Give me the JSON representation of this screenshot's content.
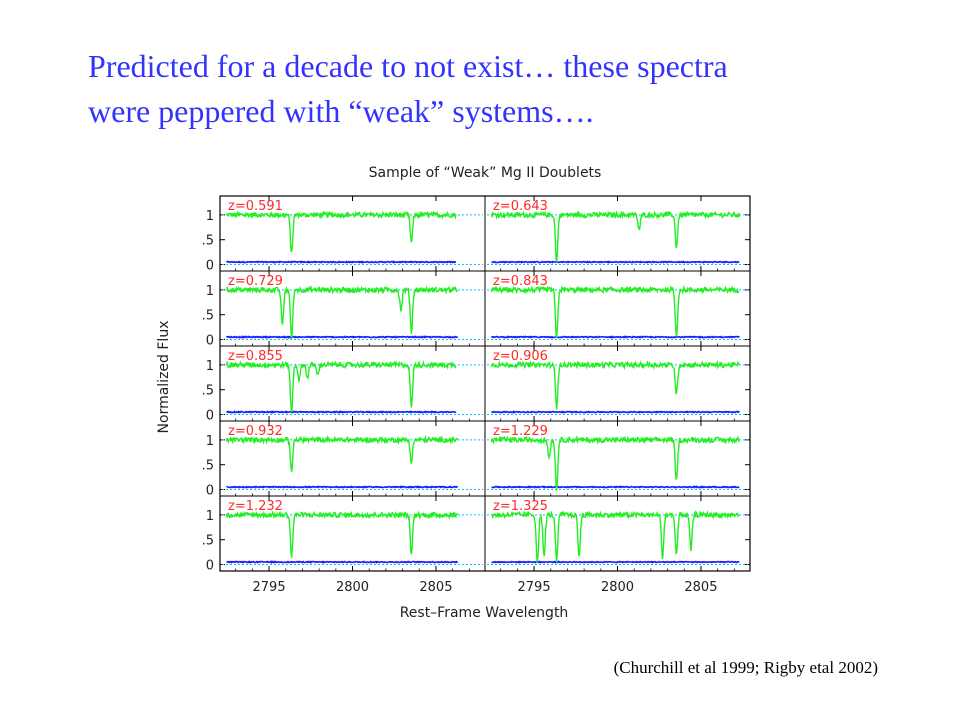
{
  "slide": {
    "title_line1": "Predicted for a decade to not exist… these spectra",
    "title_line2": "were peppered with “weak” systems….",
    "citation": "(Churchill et al 1999; Rigby etal 2002)"
  },
  "colors": {
    "title": "#3333ff",
    "spectrum": "#22ee22",
    "error": "#1a1aff",
    "reference_line": "#00c8ff",
    "panel_label": "#ff2a2a",
    "axis_text": "#222222"
  },
  "chart_data": {
    "type": "line",
    "title": "Sample of “Weak” Mg II Doublets",
    "xlabel": "Rest–Frame Wavelength",
    "ylabel": "Normalized Flux",
    "xlim": [
      2792.3,
      2807.7
    ],
    "ylim": [
      -0.05,
      1.3
    ],
    "xticks": [
      "2795",
      "2800",
      "2805"
    ],
    "yticks": [
      "0",
      ".5",
      "1"
    ],
    "grid": false,
    "layout": "5 rows x 2 columns of panels",
    "continuum_level": 1,
    "zero_level": 0,
    "panels": [
      {
        "label": "z=0.591",
        "absorption_lines": [
          {
            "x": 2796.35,
            "depth": 0.78
          },
          {
            "x": 2803.53,
            "depth": 0.55
          }
        ],
        "extra_lines": [],
        "error_level": 0.05,
        "data_end": 2806.2
      },
      {
        "label": "z=0.643",
        "absorption_lines": [
          {
            "x": 2796.35,
            "depth": 0.95
          },
          {
            "x": 2803.53,
            "depth": 0.65
          }
        ],
        "extra_lines": [
          {
            "x": 2801.3,
            "depth": 0.3
          }
        ],
        "error_level": 0.05,
        "data_end": 2807.3
      },
      {
        "label": "z=0.729",
        "absorption_lines": [
          {
            "x": 2796.35,
            "depth": 0.98
          },
          {
            "x": 2803.53,
            "depth": 0.85
          }
        ],
        "extra_lines": [
          {
            "x": 2795.8,
            "depth": 0.7
          },
          {
            "x": 2802.9,
            "depth": 0.4
          }
        ],
        "error_level": 0.05,
        "data_end": 2806.3
      },
      {
        "label": "z=0.843",
        "absorption_lines": [
          {
            "x": 2796.35,
            "depth": 1.0
          },
          {
            "x": 2803.53,
            "depth": 0.95
          }
        ],
        "extra_lines": [],
        "error_level": 0.05,
        "data_end": 2807.3
      },
      {
        "label": "z=0.855",
        "absorption_lines": [
          {
            "x": 2796.35,
            "depth": 0.98
          },
          {
            "x": 2803.53,
            "depth": 0.85
          }
        ],
        "extra_lines": [
          {
            "x": 2796.8,
            "depth": 0.3
          },
          {
            "x": 2797.3,
            "depth": 0.25
          },
          {
            "x": 2797.9,
            "depth": 0.2
          }
        ],
        "error_level": 0.05,
        "data_end": 2806.2
      },
      {
        "label": "z=0.906",
        "absorption_lines": [
          {
            "x": 2796.35,
            "depth": 0.85
          },
          {
            "x": 2803.53,
            "depth": 0.6
          }
        ],
        "extra_lines": [],
        "error_level": 0.05,
        "data_end": 2807.3
      },
      {
        "label": "z=0.932",
        "absorption_lines": [
          {
            "x": 2796.35,
            "depth": 0.62
          },
          {
            "x": 2803.53,
            "depth": 0.45
          }
        ],
        "extra_lines": [],
        "error_level": 0.05,
        "data_end": 2806.3
      },
      {
        "label": "z=1.229",
        "absorption_lines": [
          {
            "x": 2796.35,
            "depth": 1.0
          },
          {
            "x": 2803.53,
            "depth": 0.85
          }
        ],
        "extra_lines": [
          {
            "x": 2795.9,
            "depth": 0.35
          }
        ],
        "error_level": 0.05,
        "data_end": 2807.3
      },
      {
        "label": "z=1.232",
        "absorption_lines": [
          {
            "x": 2796.35,
            "depth": 0.85
          },
          {
            "x": 2803.53,
            "depth": 0.8
          }
        ],
        "extra_lines": [],
        "error_level": 0.05,
        "data_end": 2806.3
      },
      {
        "label": "z=1.325",
        "absorption_lines": [
          {
            "x": 2796.35,
            "depth": 0.95
          },
          {
            "x": 2803.53,
            "depth": 0.8
          }
        ],
        "extra_lines": [
          {
            "x": 2795.2,
            "depth": 0.95
          },
          {
            "x": 2795.6,
            "depth": 0.85
          },
          {
            "x": 2797.7,
            "depth": 0.85
          },
          {
            "x": 2802.7,
            "depth": 0.85
          },
          {
            "x": 2804.4,
            "depth": 0.7
          }
        ],
        "error_level": 0.05,
        "data_end": 2807.3
      }
    ]
  }
}
